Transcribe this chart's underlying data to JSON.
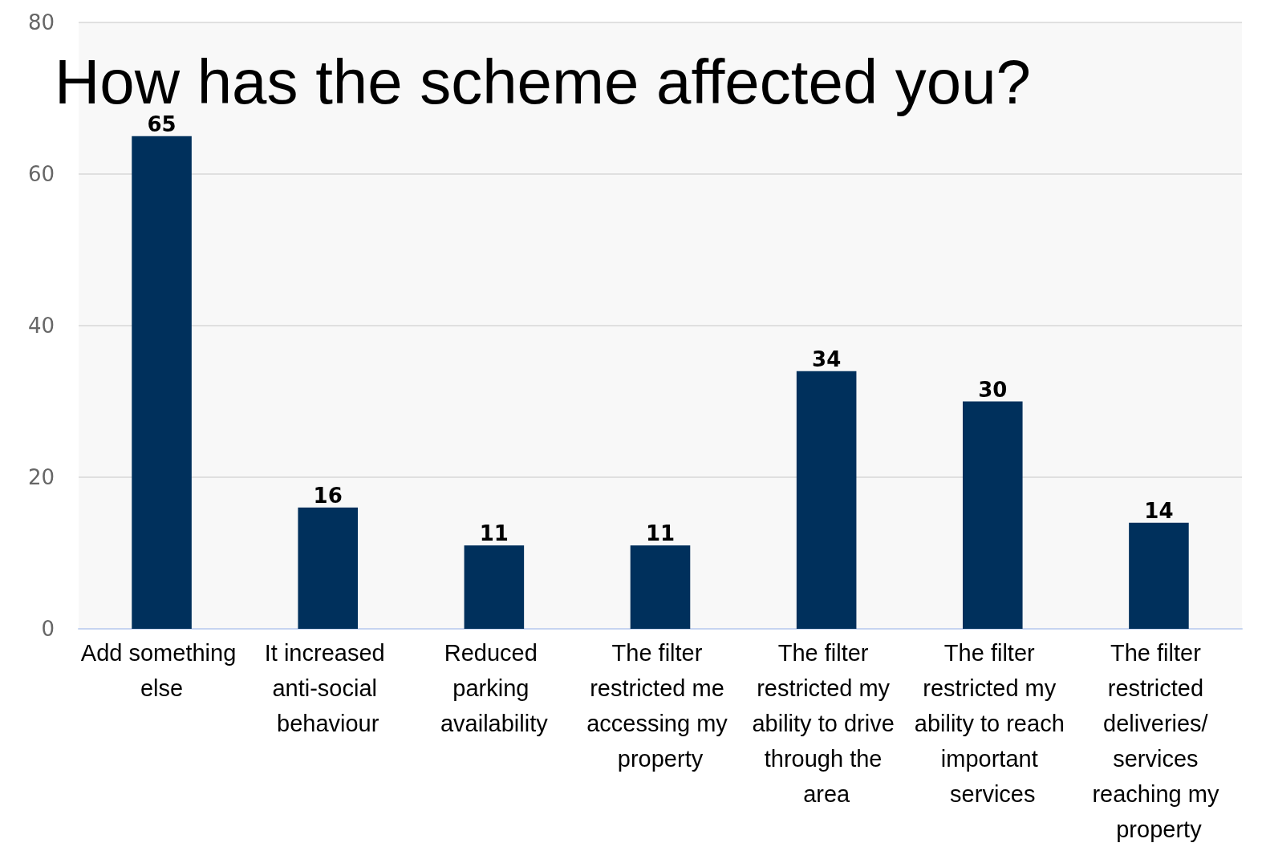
{
  "chart_data": {
    "type": "bar",
    "title": "How has the scheme affected you?",
    "categories": [
      "Add something else",
      "It increased anti-social behaviour",
      "Reduced parking availability",
      "The filter restricted me accessing my property",
      "The filter restricted my ability to drive through the area",
      "The filter restricted my ability to reach important services",
      "The filter restricted deliveries/ services reaching my property"
    ],
    "values": [
      65,
      16,
      11,
      11,
      34,
      30,
      14
    ],
    "color": "#00305c",
    "ylim": [
      0,
      80
    ],
    "yticks": [
      0,
      20,
      40,
      60,
      80
    ],
    "grid": "y",
    "data_labels": true
  }
}
